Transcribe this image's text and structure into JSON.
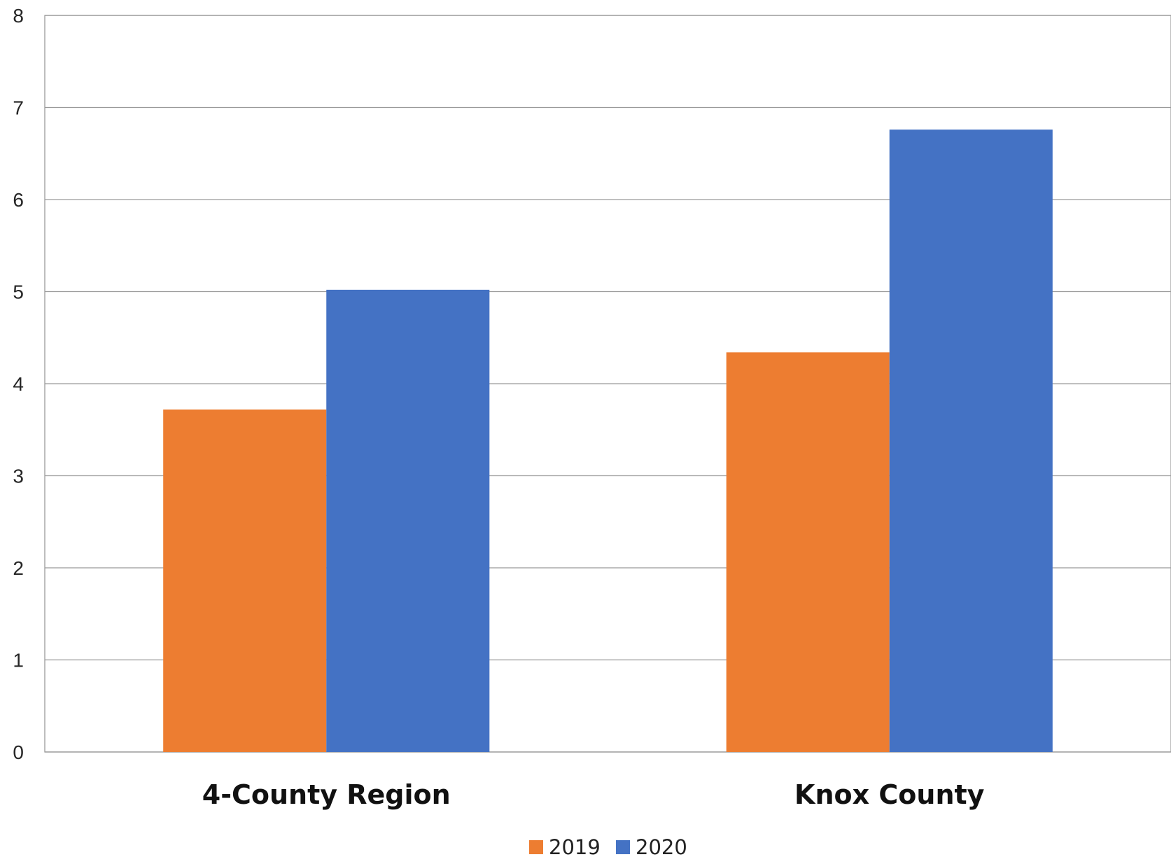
{
  "chart_data": {
    "type": "bar",
    "categories": [
      "4-County Region",
      "Knox County"
    ],
    "series": [
      {
        "name": "2019",
        "values": [
          3.72,
          4.34
        ],
        "color": "#ED7D31"
      },
      {
        "name": "2020",
        "values": [
          5.02,
          6.76
        ],
        "color": "#4472C4"
      }
    ],
    "title": "",
    "xlabel": "",
    "ylabel": "",
    "ylim": [
      0,
      8
    ],
    "yticks": [
      "0",
      "1",
      "2",
      "3",
      "4",
      "5",
      "6",
      "7",
      "8"
    ],
    "grid": true,
    "legend_position": "bottom-center"
  }
}
